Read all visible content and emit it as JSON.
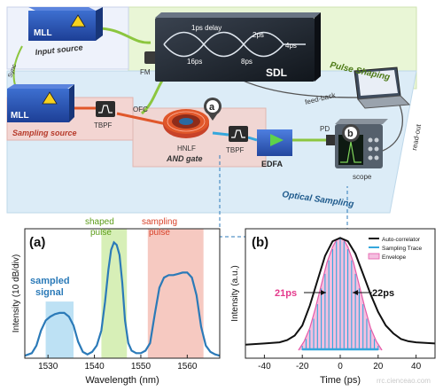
{
  "setup": {
    "mll_top": "MLL",
    "mll_bottom": "MLL",
    "input_source": "Input source",
    "sampling_source": "Sampling source",
    "sync": "Sync",
    "fm": "FM",
    "tbpf_left": "TBPF",
    "tbpf_right": "TBPF",
    "ofc": "OFC",
    "hnlf": "HNLF",
    "and_gate": "AND gate",
    "edfa": "EDFA",
    "pd": "PD",
    "scope": "scope",
    "feedback": "feed-back",
    "readout": "read-out",
    "pulse_shaping": "Pulse Shaping",
    "optical_sampling": "Optical Sampling",
    "sdl": {
      "label": "SDL",
      "delays": [
        "1ps delay",
        "2ps",
        "4ps",
        "8ps",
        "16ps"
      ]
    },
    "marker_a": "a",
    "marker_b": "b"
  },
  "panel_a": {
    "label": "(a)",
    "annotations": {
      "shaped": [
        "shaped",
        "pulse"
      ],
      "sampling": [
        "sampling",
        "pulse"
      ],
      "sampled": [
        "sampled",
        "signal"
      ]
    },
    "colors": {
      "shaped": "#d7efb7",
      "sampling": "#f6c9c1",
      "sampled": "#bde1f4",
      "trace": "#2b7ab8"
    },
    "chart_data": {
      "type": "line",
      "xlabel": "Wavelength (nm)",
      "ylabel": "Intensity (10 dB/div)",
      "xlim": [
        1525,
        1567
      ],
      "xticks": [
        1530,
        1540,
        1550,
        1560
      ],
      "regions": [
        {
          "name": "sampled",
          "range": [
            1529.5,
            1535.5
          ]
        },
        {
          "name": "shaped",
          "range": [
            1541.5,
            1547
          ]
        },
        {
          "name": "sampling",
          "range": [
            1551.5,
            1563.5
          ]
        }
      ],
      "series": [
        {
          "x": [
            1525,
            1526.5,
            1527.5,
            1528.5,
            1529.5,
            1530.5,
            1531.5,
            1532.5,
            1533.5,
            1534.5,
            1535.5,
            1536.5,
            1537.5,
            1538.5,
            1539.5,
            1540.5,
            1541.5,
            1542.3,
            1543,
            1543.6,
            1544.2,
            1544.8,
            1545.4,
            1546,
            1546.6,
            1547.3,
            1548,
            1549,
            1550,
            1551,
            1552,
            1553,
            1554,
            1555,
            1556,
            1557,
            1558,
            1559,
            1560,
            1561,
            1562,
            1563,
            1564,
            1565,
            1566,
            1567
          ],
          "y": [
            0.02,
            0.04,
            0.1,
            0.22,
            0.3,
            0.33,
            0.35,
            0.36,
            0.36,
            0.33,
            0.26,
            0.13,
            0.05,
            0.03,
            0.05,
            0.1,
            0.22,
            0.45,
            0.7,
            0.86,
            0.92,
            0.9,
            0.82,
            0.6,
            0.3,
            0.12,
            0.06,
            0.04,
            0.04,
            0.06,
            0.12,
            0.35,
            0.56,
            0.64,
            0.66,
            0.66,
            0.67,
            0.68,
            0.68,
            0.64,
            0.5,
            0.25,
            0.1,
            0.05,
            0.03,
            0.02
          ]
        }
      ]
    }
  },
  "panel_b": {
    "label": "(b)",
    "fwhm_left": "21ps",
    "fwhm_right": "22ps",
    "colors": {
      "autocorr": "#111111",
      "sampling": "#35a7dc",
      "envelope": "#e45aa8",
      "fill": "#f4bfe0"
    },
    "chart_data": {
      "type": "line",
      "xlabel": "Time (ps)",
      "ylabel": "Intensity (a.u.)",
      "xlim": [
        -50,
        50
      ],
      "ylim": [
        0,
        1.05
      ],
      "xticks": [
        -40,
        -20,
        0,
        20,
        40
      ],
      "legend": [
        "Auto-correlator",
        "Sampling Trace",
        "Envelope"
      ],
      "series": [
        {
          "name": "Auto-correlator",
          "x": [
            -50,
            -40,
            -32,
            -28,
            -24,
            -20,
            -16,
            -12,
            -8,
            -4,
            0,
            4,
            8,
            12,
            16,
            20,
            24,
            28,
            32,
            36,
            40,
            50
          ],
          "y": [
            0.05,
            0.06,
            0.07,
            0.09,
            0.13,
            0.22,
            0.4,
            0.62,
            0.84,
            0.97,
            1.0,
            0.97,
            0.86,
            0.68,
            0.5,
            0.34,
            0.22,
            0.15,
            0.1,
            0.08,
            0.07,
            0.06
          ]
        },
        {
          "name": "Envelope",
          "x": [
            -22,
            -19,
            -16,
            -13,
            -10,
            -7,
            -4,
            -2,
            0,
            2,
            4,
            7,
            10,
            13,
            16,
            19,
            22
          ],
          "y": [
            0.0,
            0.08,
            0.2,
            0.38,
            0.58,
            0.78,
            0.92,
            0.98,
            1.0,
            0.98,
            0.92,
            0.78,
            0.58,
            0.38,
            0.2,
            0.08,
            0.0
          ]
        },
        {
          "name": "Sampling Trace",
          "x": [
            -20,
            -18,
            -16,
            -14,
            -12,
            -10,
            -8,
            -6,
            -4,
            -2,
            0,
            2,
            4,
            6,
            8,
            10,
            12,
            14,
            16,
            18,
            20
          ],
          "y": [
            0.04,
            0.1,
            0.18,
            0.28,
            0.41,
            0.55,
            0.68,
            0.8,
            0.9,
            0.97,
            1.0,
            0.97,
            0.9,
            0.8,
            0.68,
            0.55,
            0.41,
            0.28,
            0.18,
            0.1,
            0.04
          ]
        }
      ]
    }
  },
  "watermark": "rrc.cienceao.com"
}
